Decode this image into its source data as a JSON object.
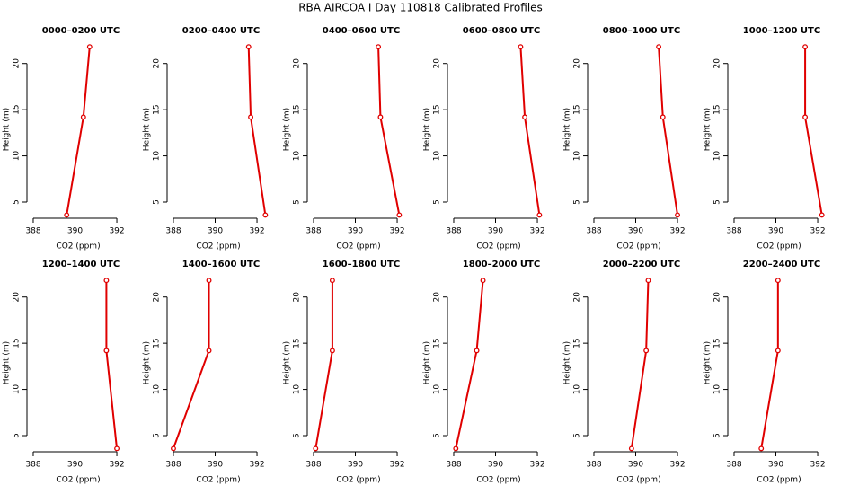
{
  "title": "RBA AIRCOA I  Day 110818  Calibrated Profiles",
  "chart_data": [
    {
      "type": "line",
      "title": "0000–0200 UTC",
      "xlabel": "CO2 (ppm)",
      "ylabel": "Height (m)",
      "color": "#e00000",
      "x": [
        389.6,
        390.4,
        390.7
      ],
      "values": [
        3.6,
        14.2,
        21.8
      ],
      "xlim": [
        387.7,
        392.6
      ],
      "ylim": [
        3.25,
        22.5
      ],
      "xticks": [
        388,
        390,
        392
      ],
      "yticks": [
        5,
        10,
        15,
        20
      ]
    },
    {
      "type": "line",
      "title": "0200–0400 UTC",
      "xlabel": "CO2 (ppm)",
      "ylabel": "Height (m)",
      "color": "#e00000",
      "x": [
        392.4,
        391.7,
        391.6
      ],
      "values": [
        3.6,
        14.2,
        21.8
      ],
      "xlim": [
        387.7,
        392.6
      ],
      "ylim": [
        3.25,
        22.5
      ],
      "xticks": [
        388,
        390,
        392
      ],
      "yticks": [
        5,
        10,
        15,
        20
      ]
    },
    {
      "type": "line",
      "title": "0400–0600 UTC",
      "xlabel": "CO2 (ppm)",
      "ylabel": "Height (m)",
      "color": "#e00000",
      "x": [
        392.1,
        391.2,
        391.1
      ],
      "values": [
        3.6,
        14.2,
        21.8
      ],
      "xlim": [
        387.7,
        392.6
      ],
      "ylim": [
        3.25,
        22.5
      ],
      "xticks": [
        388,
        390,
        392
      ],
      "yticks": [
        5,
        10,
        15,
        20
      ]
    },
    {
      "type": "line",
      "title": "0600–0800 UTC",
      "xlabel": "CO2 (ppm)",
      "ylabel": "Height (m)",
      "color": "#e00000",
      "x": [
        392.1,
        391.4,
        391.2
      ],
      "values": [
        3.6,
        14.2,
        21.8
      ],
      "xlim": [
        387.7,
        392.6
      ],
      "ylim": [
        3.25,
        22.5
      ],
      "xticks": [
        388,
        390,
        392
      ],
      "yticks": [
        5,
        10,
        15,
        20
      ]
    },
    {
      "type": "line",
      "title": "0800–1000 UTC",
      "xlabel": "CO2 (ppm)",
      "ylabel": "Height (m)",
      "color": "#e00000",
      "x": [
        392.0,
        391.3,
        391.1
      ],
      "values": [
        3.6,
        14.2,
        21.8
      ],
      "xlim": [
        387.7,
        392.6
      ],
      "ylim": [
        3.25,
        22.5
      ],
      "xticks": [
        388,
        390,
        392
      ],
      "yticks": [
        5,
        10,
        15,
        20
      ]
    },
    {
      "type": "line",
      "title": "1000–1200 UTC",
      "xlabel": "CO2 (ppm)",
      "ylabel": "Height (m)",
      "color": "#e00000",
      "x": [
        392.2,
        391.4,
        391.4
      ],
      "values": [
        3.6,
        14.2,
        21.8
      ],
      "xlim": [
        387.7,
        392.6
      ],
      "ylim": [
        3.25,
        22.5
      ],
      "xticks": [
        388,
        390,
        392
      ],
      "yticks": [
        5,
        10,
        15,
        20
      ]
    },
    {
      "type": "line",
      "title": "1200–1400 UTC",
      "xlabel": "CO2 (ppm)",
      "ylabel": "Height (m)",
      "color": "#e00000",
      "x": [
        392.0,
        391.5,
        391.5
      ],
      "values": [
        3.6,
        14.2,
        21.8
      ],
      "xlim": [
        387.7,
        392.6
      ],
      "ylim": [
        3.25,
        22.5
      ],
      "xticks": [
        388,
        390,
        392
      ],
      "yticks": [
        5,
        10,
        15,
        20
      ]
    },
    {
      "type": "line",
      "title": "1400–1600 UTC",
      "xlabel": "CO2 (ppm)",
      "ylabel": "Height (m)",
      "color": "#e00000",
      "x": [
        388.0,
        389.7,
        389.7
      ],
      "values": [
        3.6,
        14.2,
        21.8
      ],
      "xlim": [
        387.7,
        392.6
      ],
      "ylim": [
        3.25,
        22.5
      ],
      "xticks": [
        388,
        390,
        392
      ],
      "yticks": [
        5,
        10,
        15,
        20
      ]
    },
    {
      "type": "line",
      "title": "1600–1800 UTC",
      "xlabel": "CO2 (ppm)",
      "ylabel": "Height (m)",
      "color": "#e00000",
      "x": [
        388.1,
        388.9,
        388.9
      ],
      "values": [
        3.6,
        14.2,
        21.8
      ],
      "xlim": [
        387.7,
        392.6
      ],
      "ylim": [
        3.25,
        22.5
      ],
      "xticks": [
        388,
        390,
        392
      ],
      "yticks": [
        5,
        10,
        15,
        20
      ]
    },
    {
      "type": "line",
      "title": "1800–2000 UTC",
      "xlabel": "CO2 (ppm)",
      "ylabel": "Height (m)",
      "color": "#e00000",
      "x": [
        388.1,
        389.1,
        389.4
      ],
      "values": [
        3.6,
        14.2,
        21.8
      ],
      "xlim": [
        387.7,
        392.6
      ],
      "ylim": [
        3.25,
        22.5
      ],
      "xticks": [
        388,
        390,
        392
      ],
      "yticks": [
        5,
        10,
        15,
        20
      ]
    },
    {
      "type": "line",
      "title": "2000–2200 UTC",
      "xlabel": "CO2 (ppm)",
      "ylabel": "Height (m)",
      "color": "#e00000",
      "x": [
        389.8,
        390.5,
        390.6
      ],
      "values": [
        3.6,
        14.2,
        21.8
      ],
      "xlim": [
        387.7,
        392.6
      ],
      "ylim": [
        3.25,
        22.5
      ],
      "xticks": [
        388,
        390,
        392
      ],
      "yticks": [
        5,
        10,
        15,
        20
      ]
    },
    {
      "type": "line",
      "title": "2200–2400 UTC",
      "xlabel": "CO2 (ppm)",
      "ylabel": "Height (m)",
      "color": "#e00000",
      "x": [
        389.3,
        390.1,
        390.1
      ],
      "values": [
        3.6,
        14.2,
        21.8
      ],
      "xlim": [
        387.7,
        392.6
      ],
      "ylim": [
        3.25,
        22.5
      ],
      "xticks": [
        388,
        390,
        392
      ],
      "yticks": [
        5,
        10,
        15,
        20
      ]
    }
  ]
}
